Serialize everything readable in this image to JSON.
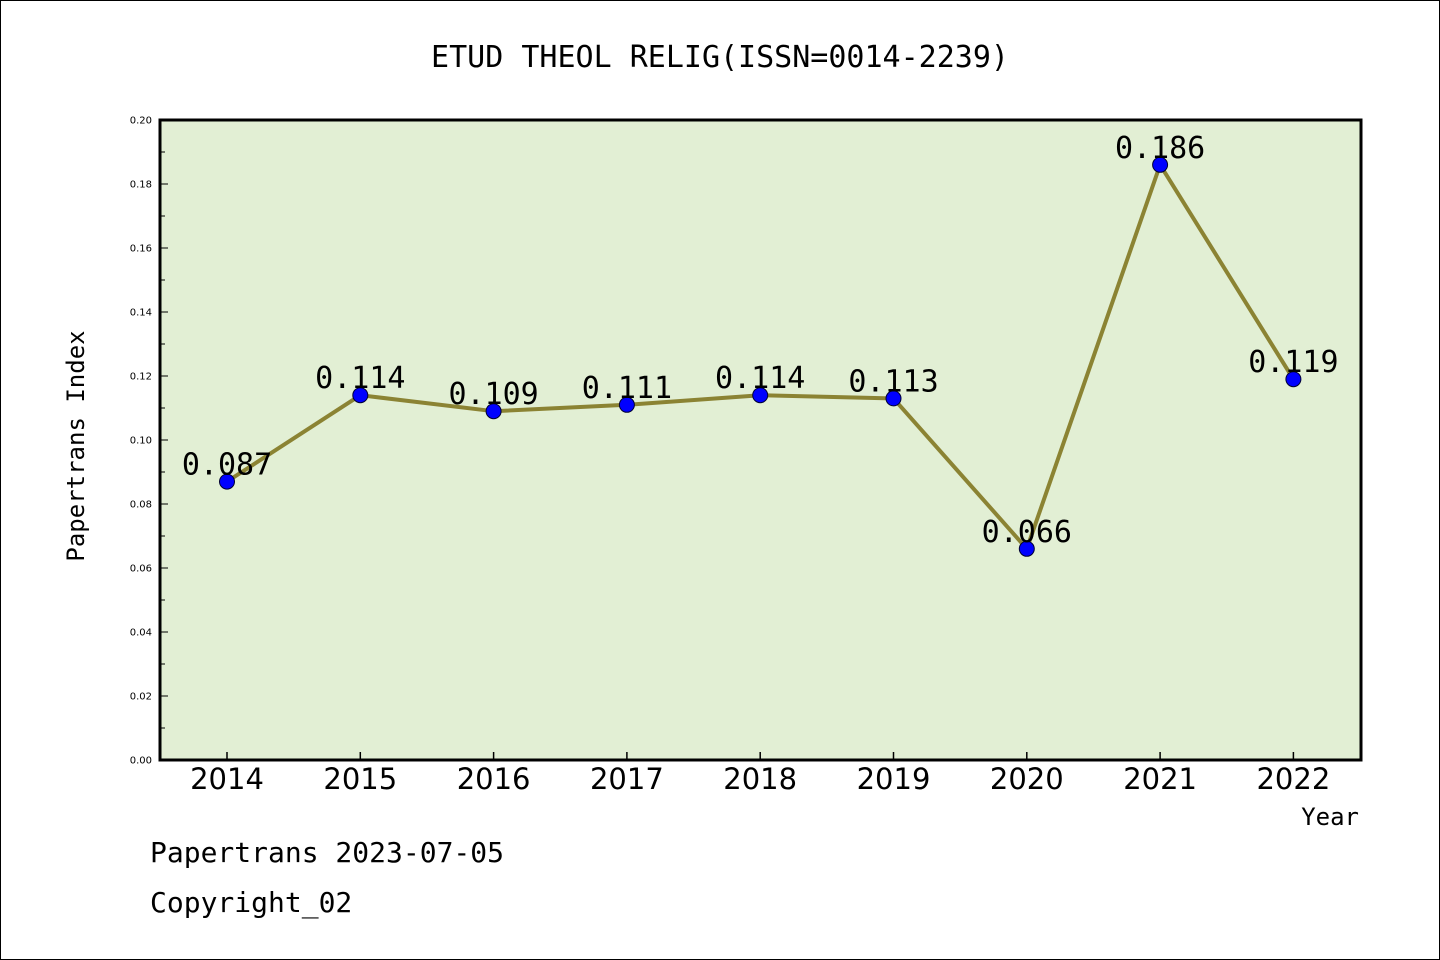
{
  "chart_data": {
    "type": "line",
    "title": "ETUD THEOL RELIG(ISSN=0014-2239)",
    "xlabel": "Year",
    "ylabel": "Papertrans Index",
    "categories": [
      "2014",
      "2015",
      "2016",
      "2017",
      "2018",
      "2019",
      "2020",
      "2021",
      "2022"
    ],
    "series": [
      {
        "values": [
          0.087,
          0.114,
          0.109,
          0.111,
          0.114,
          0.113,
          0.066,
          0.186,
          0.119
        ]
      }
    ],
    "data_labels": [
      "0.087",
      "0.114",
      "0.109",
      "0.111",
      "0.114",
      "0.113",
      "0.066",
      "0.186",
      "0.119"
    ],
    "ylim": [
      0,
      0.2
    ],
    "yticks": [
      "0.00",
      "0.02",
      "0.04",
      "0.06",
      "0.08",
      "0.10",
      "0.12",
      "0.14",
      "0.16",
      "0.18",
      "0.20"
    ],
    "grid": false,
    "colors": {
      "plot_background": "#e2efd4",
      "line": "#8b8333",
      "marker": "#0000ff"
    }
  },
  "footer": {
    "date_text": "Papertrans 2023-07-05",
    "copyright_text": "Copyright_02"
  }
}
